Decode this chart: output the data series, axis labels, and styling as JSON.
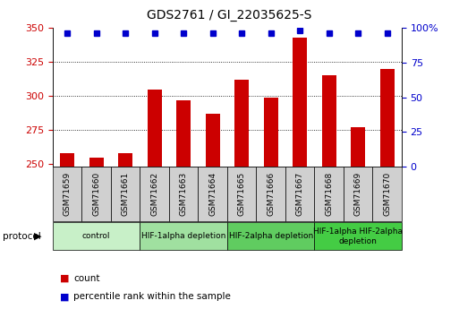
{
  "title": "GDS2761 / GI_22035625-S",
  "samples": [
    "GSM71659",
    "GSM71660",
    "GSM71661",
    "GSM71662",
    "GSM71663",
    "GSM71664",
    "GSM71665",
    "GSM71666",
    "GSM71667",
    "GSM71668",
    "GSM71669",
    "GSM71670"
  ],
  "counts": [
    258,
    255,
    258,
    305,
    297,
    287,
    312,
    299,
    343,
    315,
    277,
    320
  ],
  "percentile_ranks": [
    96,
    96,
    96,
    96,
    96,
    96,
    96,
    96,
    98,
    96,
    96,
    96
  ],
  "ylim_left": [
    248,
    350
  ],
  "ylim_right": [
    0,
    100
  ],
  "yticks_left": [
    250,
    275,
    300,
    325,
    350
  ],
  "yticks_right": [
    0,
    25,
    50,
    75,
    100
  ],
  "bar_color": "#cc0000",
  "dot_color": "#0000cc",
  "bar_bottom": 248,
  "plot_bg": "#ffffff",
  "tick_box_color": "#d0d0d0",
  "groups": [
    {
      "label": "control",
      "start": 0,
      "end": 3,
      "color": "#c8f0c8"
    },
    {
      "label": "HIF-1alpha depletion",
      "start": 3,
      "end": 6,
      "color": "#a0e0a0"
    },
    {
      "label": "HIF-2alpha depletion",
      "start": 6,
      "end": 9,
      "color": "#60cc60"
    },
    {
      "label": "HIF-1alpha HIF-2alpha\ndepletion",
      "start": 9,
      "end": 12,
      "color": "#44cc44"
    }
  ],
  "background_color": "#ffffff",
  "protocol_label": "protocol",
  "legend_count_label": "count",
  "legend_percentile_label": "percentile rank within the sample",
  "title_fontsize": 10,
  "axis_fontsize": 8,
  "tick_fontsize": 7,
  "sample_fontsize": 6.5
}
